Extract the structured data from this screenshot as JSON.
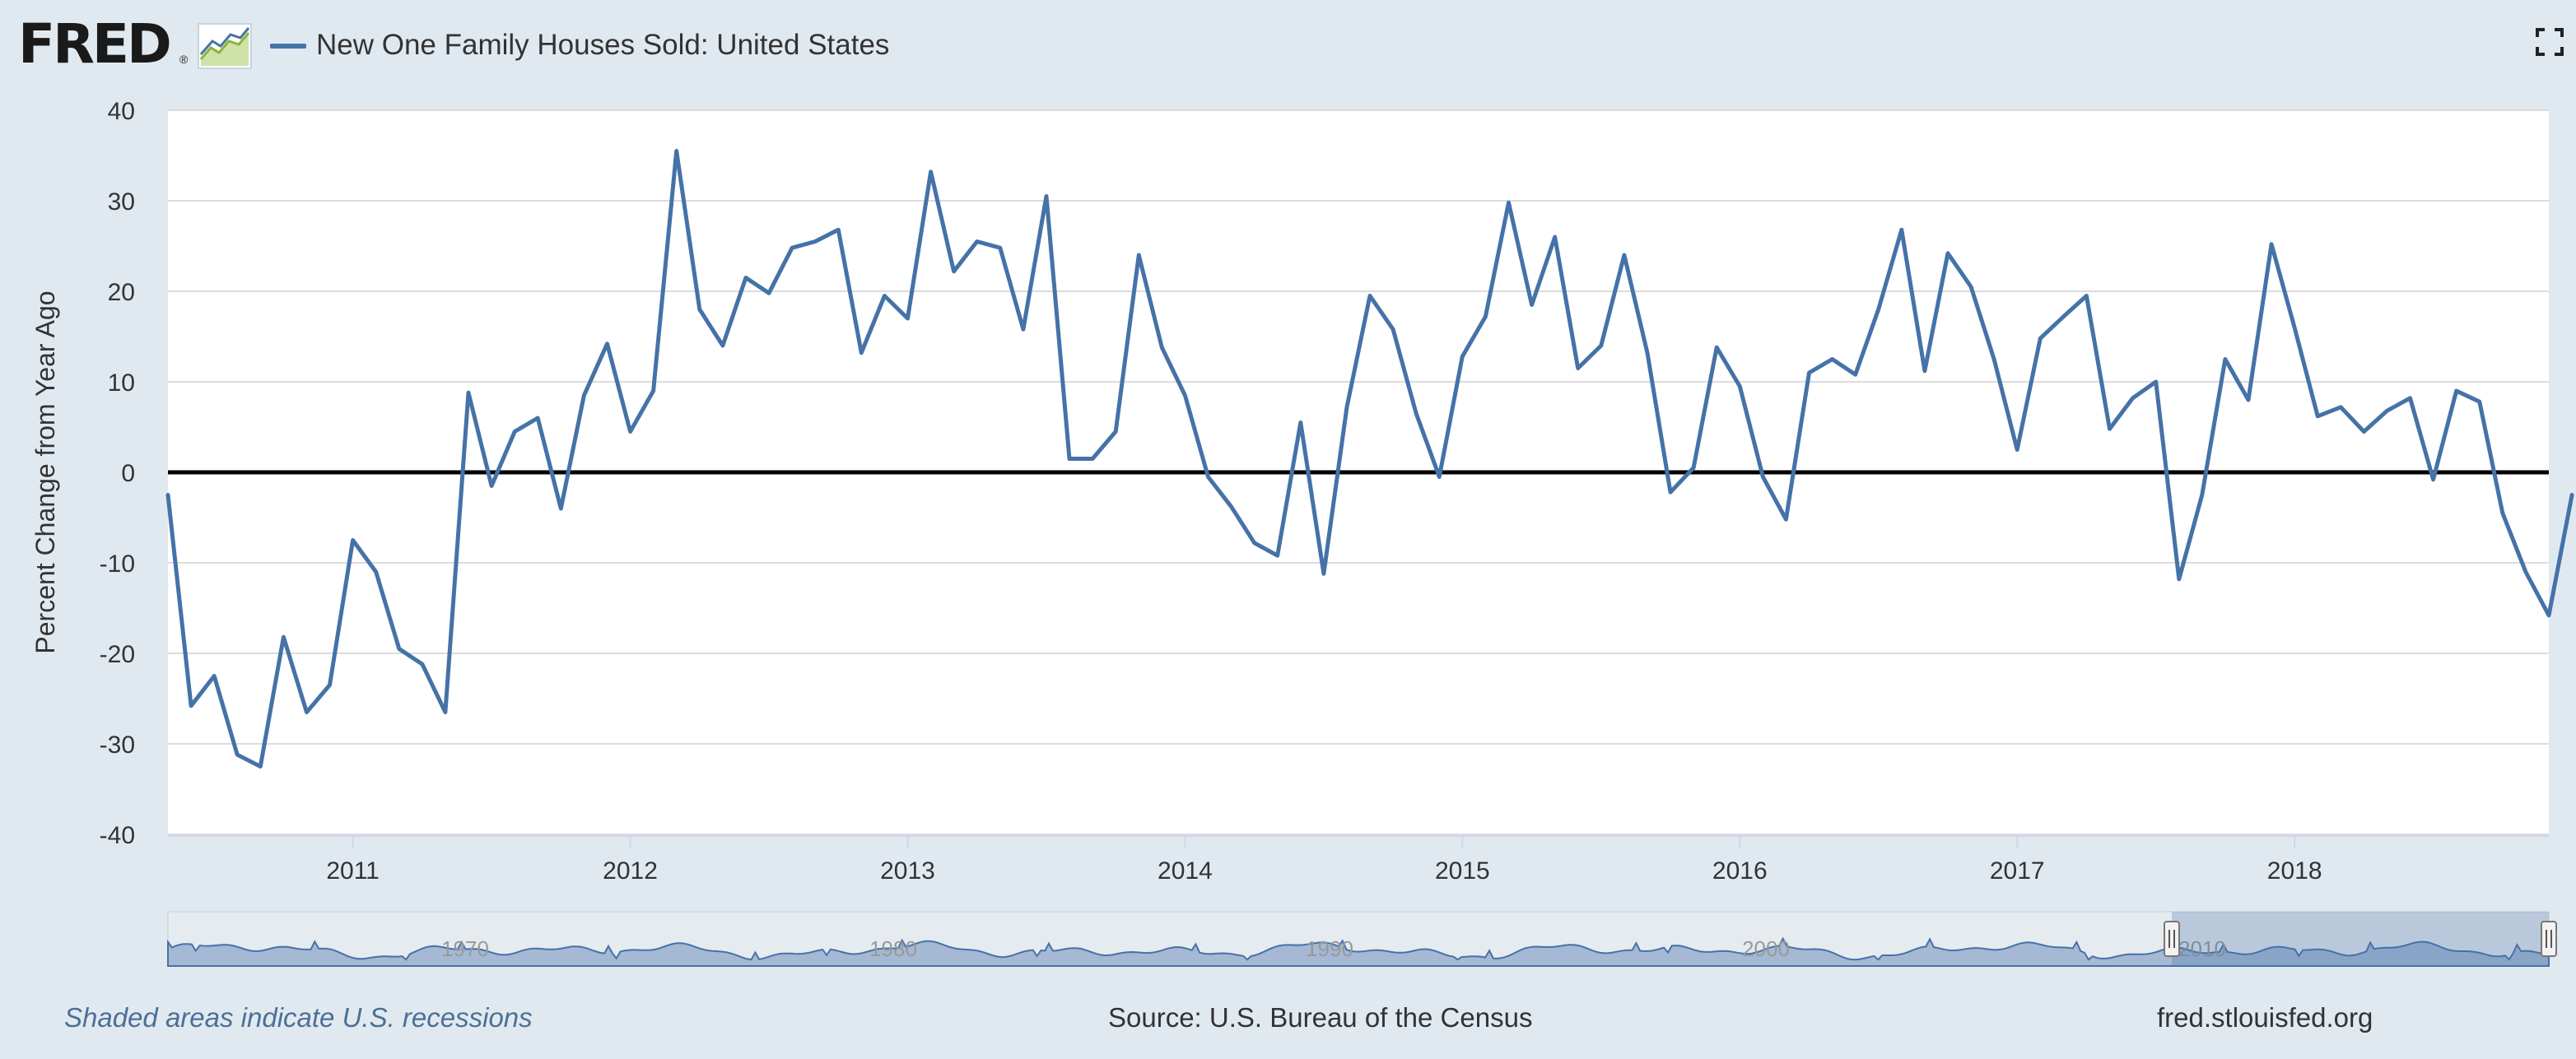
{
  "header": {
    "logo_text": "FRED",
    "logo_reg": "®",
    "logo_icon": "line-graph-icon",
    "legend_label": "New One Family Houses Sold: United States",
    "fullscreen_icon": "fullscreen-icon"
  },
  "footer": {
    "recession_note": "Shaded areas indicate U.S. recessions",
    "source": "Source: U.S. Bureau of the Census",
    "site": "fred.stlouisfed.org"
  },
  "colors": {
    "series": "#4572a7",
    "background": "#e1e9f0",
    "plot_background": "#ffffff",
    "zero_line": "#000000"
  },
  "navigator": {
    "tick_labels": [
      "1970",
      "1980",
      "1990",
      "2000",
      "2010"
    ]
  },
  "chart_data": {
    "type": "line",
    "title": "",
    "xlabel": "",
    "ylabel": "Percent Change from Year Ago",
    "ylim": [
      -40,
      40
    ],
    "y_ticks": [
      40,
      30,
      20,
      10,
      0,
      -10,
      -20,
      -30,
      -40
    ],
    "x_ticks": [
      "2011",
      "2012",
      "2013",
      "2014",
      "2015",
      "2016",
      "2017",
      "2018"
    ],
    "x_range": [
      "2010-05",
      "2018-12"
    ],
    "grid": true,
    "legend": "top-left",
    "series": [
      {
        "name": "New One Family Houses Sold: United States",
        "x_start": "2010-05",
        "frequency": "monthly",
        "values": [
          -2.5,
          -25.8,
          -22.5,
          -31.2,
          -32.5,
          -18.2,
          -26.5,
          -23.5,
          -7.5,
          -11.0,
          -19.5,
          -21.2,
          -26.5,
          8.8,
          -1.5,
          4.5,
          6.0,
          -4.0,
          8.5,
          14.2,
          4.5,
          9.0,
          35.5,
          18.0,
          14.0,
          21.5,
          19.8,
          24.8,
          25.5,
          26.8,
          13.2,
          19.5,
          17.0,
          33.2,
          22.2,
          25.5,
          24.8,
          15.8,
          30.5,
          1.5,
          1.5,
          4.5,
          24.0,
          13.8,
          8.5,
          -0.5,
          -3.8,
          -7.8,
          -9.2,
          5.5,
          -11.2,
          7.2,
          19.5,
          15.8,
          6.5,
          -0.5,
          12.8,
          17.2,
          29.8,
          18.5,
          26.0,
          11.5,
          14.0,
          24.0,
          13.2,
          -2.2,
          0.5,
          13.8,
          9.5,
          -0.5,
          -5.2,
          11.0,
          12.5,
          10.8,
          18.0,
          26.8,
          11.2,
          24.2,
          20.5,
          12.5,
          2.5,
          14.8,
          17.2,
          19.5,
          4.8,
          8.2,
          10.0,
          -11.8,
          -2.5,
          12.5,
          8.0,
          25.2,
          16.0,
          6.2,
          7.2,
          4.5,
          6.8,
          8.2,
          -0.8,
          9.0,
          7.8,
          -4.5,
          -11.0,
          -15.8,
          -2.5
        ]
      }
    ]
  }
}
